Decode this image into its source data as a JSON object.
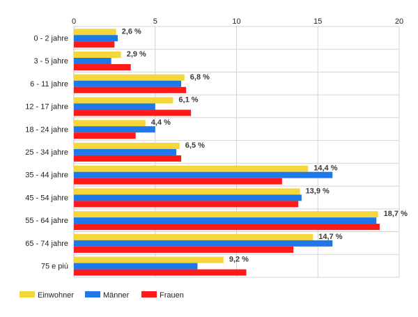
{
  "chart_data": {
    "type": "bar",
    "orientation": "horizontal",
    "categories": [
      "0 - 2 jahre",
      "3 - 5 jahre",
      "6 - 11 jahre",
      "12 - 17 jahre",
      "18 - 24 jahre",
      "25 - 34 jahre",
      "35 - 44 jahre",
      "45 - 54 jahre",
      "55 - 64 jahre",
      "65 - 74 jahre",
      "75 e più"
    ],
    "series": [
      {
        "name": "Einwohner",
        "color": "#f5d63b",
        "values": [
          2.6,
          2.9,
          6.8,
          6.1,
          4.4,
          6.5,
          14.4,
          13.9,
          18.7,
          14.7,
          9.2
        ]
      },
      {
        "name": "Männer",
        "color": "#1f78e8",
        "values": [
          2.7,
          2.3,
          6.6,
          5.0,
          5.0,
          6.3,
          15.9,
          14.0,
          18.6,
          15.9,
          7.6
        ]
      },
      {
        "name": "Frauen",
        "color": "#ff1a1a",
        "values": [
          2.5,
          3.5,
          6.9,
          7.2,
          3.8,
          6.6,
          12.8,
          13.8,
          18.8,
          13.5,
          10.6
        ]
      }
    ],
    "data_labels": [
      "2,6 %",
      "2,9 %",
      "6,8 %",
      "6,1 %",
      "4,4 %",
      "6,5 %",
      "14,4 %",
      "13,9 %",
      "18,7 %",
      "14,7 %",
      "9,2 %"
    ],
    "xlim": [
      0,
      20
    ],
    "xticks": [
      0,
      5,
      10,
      15,
      20
    ],
    "x_axis_position": "top",
    "grid": true,
    "legend_position": "bottom-left",
    "title": "",
    "xlabel": "",
    "ylabel": ""
  }
}
